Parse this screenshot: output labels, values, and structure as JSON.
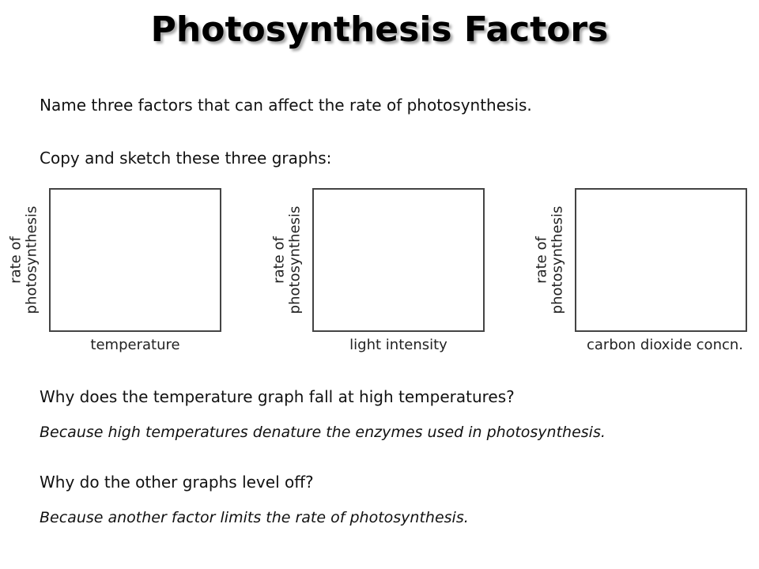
{
  "title": "Photosynthesis Factors",
  "questions": {
    "q1": "Name three factors that can affect the rate of photosynthesis.",
    "q2": "Copy and sketch these three graphs:",
    "q3": "Why does the temperature graph fall at high temperatures?",
    "a3": "Because high temperatures denature the enzymes used in photosynthesis.",
    "q4": "Why do the other graphs level off?",
    "a4": "Because another factor limits the rate of photosynthesis."
  },
  "graphs": [
    {
      "y_label_1": "rate of",
      "y_label_2": "photosynthesis",
      "x_label": "temperature"
    },
    {
      "y_label_1": "rate of",
      "y_label_2": "photosynthesis",
      "x_label": "light intensity"
    },
    {
      "y_label_1": "rate of",
      "y_label_2": "photosynthesis",
      "x_label": "carbon dioxide concn."
    }
  ]
}
